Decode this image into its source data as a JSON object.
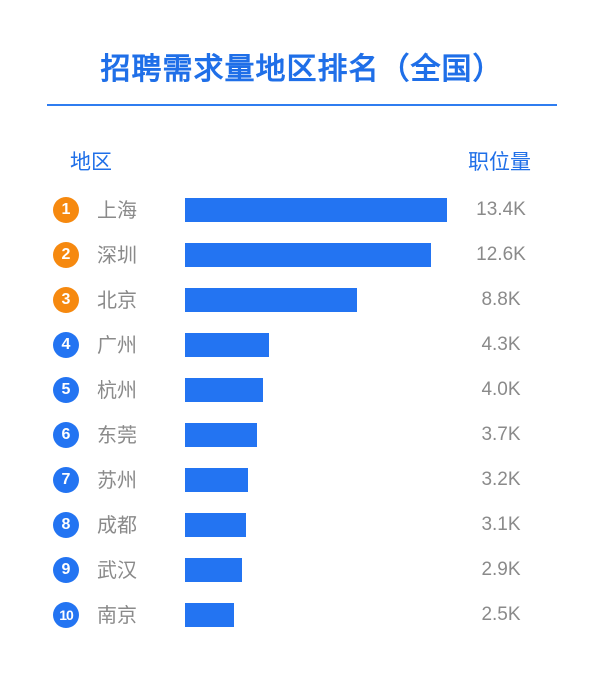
{
  "title": "招聘需求量地区排名（全国）",
  "headers": {
    "region": "地区",
    "value": "职位量"
  },
  "colors": {
    "accent": "#1f6fe8",
    "bar": "#2374f2",
    "top3_badge": "#f6890f",
    "badge": "#2374f2",
    "muted_text": "#8a8a8a"
  },
  "chart_data": {
    "type": "bar",
    "orientation": "horizontal",
    "title": "招聘需求量地区排名（全国）",
    "xlabel": "职位量",
    "ylabel": "地区",
    "ranks": [
      "1",
      "2",
      "3",
      "4",
      "5",
      "6",
      "7",
      "8",
      "9",
      "10"
    ],
    "categories": [
      "上海",
      "深圳",
      "北京",
      "广州",
      "杭州",
      "东莞",
      "苏州",
      "成都",
      "武汉",
      "南京"
    ],
    "values": [
      13400,
      12600,
      8800,
      4300,
      4000,
      3700,
      3200,
      3100,
      2900,
      2500
    ],
    "value_labels": [
      "13.4K",
      "12.6K",
      "8.8K",
      "4.3K",
      "4.0K",
      "3.7K",
      "3.2K",
      "3.1K",
      "2.9K",
      "2.5K"
    ],
    "xlim": [
      0,
      13400
    ],
    "grid": false,
    "legend": "none"
  }
}
